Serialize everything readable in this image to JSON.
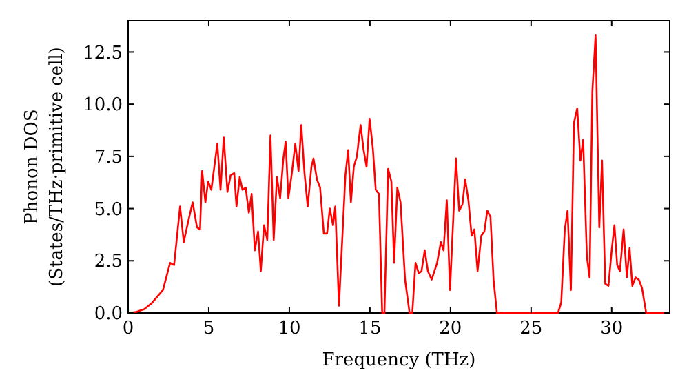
{
  "chart_data": {
    "type": "line",
    "xlabel": "Frequency (THz)",
    "ylabel": "Phonon DOS\n(States/THz·primitive cell)",
    "xlim": [
      0,
      33.6
    ],
    "ylim": [
      0,
      14
    ],
    "xticks": [
      0,
      5,
      10,
      15,
      20,
      25,
      30
    ],
    "yticks": [
      {
        "value": 0,
        "label": "0.0"
      },
      {
        "value": 2.5,
        "label": "2.5"
      },
      {
        "value": 5,
        "label": "5.0"
      },
      {
        "value": 7.5,
        "label": "7.5"
      },
      {
        "value": 10,
        "label": "10.0"
      },
      {
        "value": 12.5,
        "label": "12.5"
      }
    ],
    "grid": false,
    "marker": "none",
    "line_style": "solid",
    "series": [
      {
        "color": "#ff0000",
        "x": [
          0,
          0.5,
          1,
          1.45,
          2.16,
          2.6,
          2.85,
          3.22,
          3.45,
          3.73,
          4.0,
          4.27,
          4.46,
          4.59,
          4.79,
          4.96,
          5.16,
          5.53,
          5.73,
          5.93,
          6.16,
          6.36,
          6.58,
          6.72,
          6.92,
          7.09,
          7.29,
          7.49,
          7.66,
          7.86,
          8.06,
          8.23,
          8.43,
          8.63,
          8.83,
          9.03,
          9.23,
          9.43,
          9.63,
          9.77,
          9.94,
          10.14,
          10.37,
          10.57,
          10.74,
          10.94,
          11.14,
          11.37,
          11.5,
          11.71,
          11.91,
          12.14,
          12.34,
          12.51,
          12.71,
          12.85,
          13.08,
          13.48,
          13.65,
          13.82,
          14.0,
          14.19,
          14.42,
          14.61,
          14.79,
          14.98,
          15.18,
          15.36,
          15.56,
          15.76,
          15.9,
          16.13,
          16.33,
          16.5,
          16.7,
          16.9,
          17.18,
          17.46,
          17.63,
          17.83,
          18.03,
          18.2,
          18.4,
          18.6,
          18.83,
          19.17,
          19.4,
          19.57,
          19.77,
          19.97,
          20.34,
          20.54,
          20.74,
          20.91,
          21.11,
          21.31,
          21.48,
          21.68,
          21.91,
          22.1,
          22.28,
          22.48,
          22.67,
          22.88,
          26.67,
          26.87,
          27.09,
          27.26,
          27.47,
          27.66,
          27.86,
          28.06,
          28.23,
          28.46,
          28.63,
          28.8,
          29.0,
          29.23,
          29.4,
          29.6,
          29.8,
          30.0,
          30.17,
          30.34,
          30.51,
          30.74,
          30.94,
          31.11,
          31.28,
          31.48,
          31.68,
          31.88,
          32.14,
          33.5
        ],
        "values": [
          0,
          0.05,
          0.18,
          0.46,
          1.1,
          2.4,
          2.3,
          5.1,
          3.4,
          4.4,
          5.3,
          4.1,
          4.0,
          6.8,
          5.3,
          6.3,
          5.9,
          8.1,
          5.9,
          8.4,
          5.8,
          6.6,
          6.7,
          5.1,
          6.5,
          5.9,
          6.0,
          4.8,
          5.7,
          3.0,
          3.9,
          2.0,
          4.2,
          3.5,
          8.5,
          3.5,
          6.5,
          5.5,
          7.4,
          8.2,
          5.5,
          6.6,
          8.1,
          6.8,
          9.0,
          6.7,
          5.1,
          7.0,
          7.4,
          6.4,
          6.0,
          3.8,
          3.8,
          5.0,
          4.2,
          5.1,
          0.35,
          6.6,
          7.8,
          5.3,
          7.0,
          7.5,
          9.0,
          7.8,
          7.0,
          9.3,
          7.9,
          5.9,
          5.7,
          0,
          0,
          6.9,
          6.3,
          2.4,
          6.0,
          5.3,
          1.6,
          0,
          0,
          2.4,
          1.9,
          2.0,
          3.0,
          2.0,
          1.6,
          2.4,
          3.4,
          3.0,
          5.4,
          1.1,
          7.4,
          4.9,
          5.2,
          6.4,
          5.4,
          3.7,
          4.0,
          2.0,
          3.7,
          3.9,
          4.9,
          4.6,
          1.6,
          0,
          0,
          0.5,
          4.0,
          4.9,
          1.1,
          9.1,
          9.8,
          7.3,
          8.3,
          2.7,
          1.7,
          10.6,
          13.3,
          4.1,
          7.3,
          1.4,
          1.3,
          3.0,
          4.2,
          2.3,
          2.0,
          4.0,
          1.7,
          3.1,
          1.3,
          1.7,
          1.6,
          1.2,
          0,
          0
        ]
      }
    ]
  }
}
